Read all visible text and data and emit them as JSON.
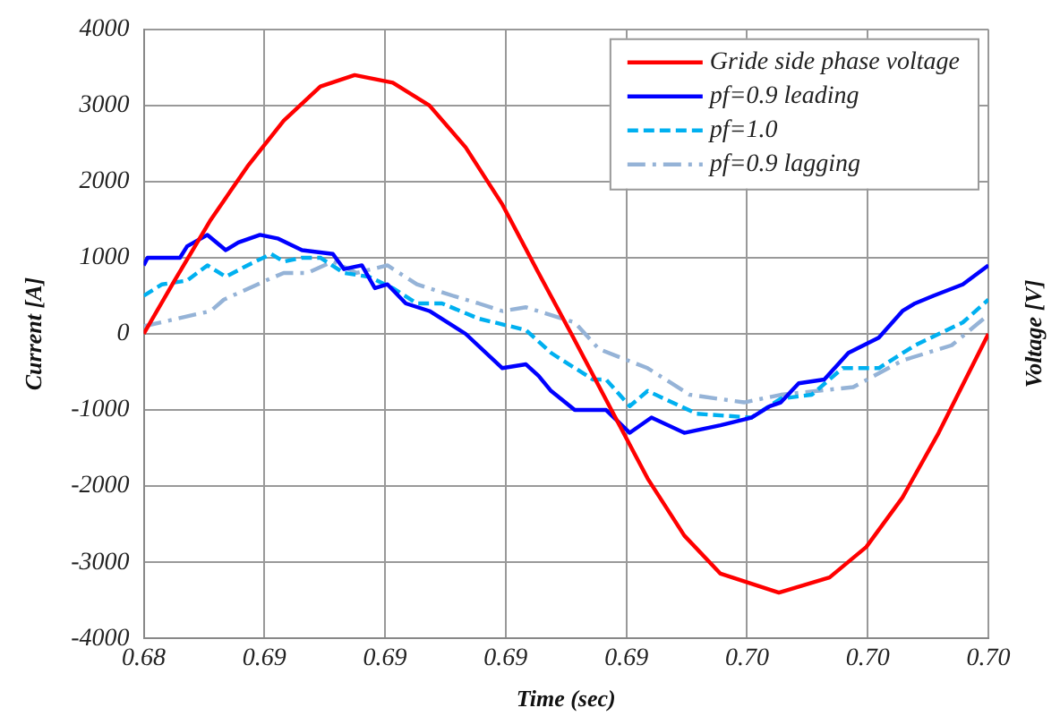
{
  "chart_data": {
    "type": "line",
    "xlabel": "Time (sec)",
    "ylabel": "Current [A]",
    "y2label": "Voltage [V]",
    "xlim": [
      0.6833,
      0.7008
    ],
    "xticks": [
      {
        "value": 0.6833,
        "label": "0.68"
      },
      {
        "value": 0.6858,
        "label": "0.69"
      },
      {
        "value": 0.6883,
        "label": "0.69"
      },
      {
        "value": 0.6908,
        "label": "0.69"
      },
      {
        "value": 0.6933,
        "label": "0.69"
      },
      {
        "value": 0.6958,
        "label": "0.70"
      },
      {
        "value": 0.6983,
        "label": "0.70"
      },
      {
        "value": 0.7008,
        "label": "0.70"
      }
    ],
    "ylim": [
      -4000,
      4000
    ],
    "yticks": [
      -4000,
      -3000,
      -2000,
      -1000,
      0,
      1000,
      2000,
      3000,
      4000
    ],
    "grid": true,
    "legend": "top right",
    "marker": "none",
    "series": [
      {
        "name": "Gride side phase voltage",
        "color": "#ff0000",
        "line_style": "solid",
        "x": [
          0.6833,
          0.68394,
          0.68469,
          0.68545,
          0.6862,
          0.68696,
          0.68767,
          0.68846,
          0.68922,
          0.68997,
          0.69073,
          0.69148,
          0.69216,
          0.69299,
          0.69374,
          0.6945,
          0.69525,
          0.69646,
          0.69751,
          0.69827,
          0.69902,
          0.69977,
          0.7008
        ],
        "values": [
          0,
          700,
          1500,
          2200,
          2800,
          3250,
          3400,
          3300,
          3000,
          2450,
          1700,
          800,
          0,
          -1000,
          -1900,
          -2650,
          -3150,
          -3400,
          -3200,
          -2800,
          -2150,
          -1300,
          0
        ]
      },
      {
        "name": "pf=0.9 leading",
        "color": "#0000ff",
        "line_style": "solid",
        "x": [
          0.6833,
          0.68338,
          0.68405,
          0.6842,
          0.68462,
          0.685,
          0.68526,
          0.68571,
          0.68609,
          0.68658,
          0.68722,
          0.68745,
          0.68782,
          0.68809,
          0.68835,
          0.68873,
          0.68922,
          0.68997,
          0.69073,
          0.69122,
          0.69148,
          0.69174,
          0.69223,
          0.69288,
          0.69337,
          0.69382,
          0.6945,
          0.69525,
          0.69589,
          0.69627,
          0.6965,
          0.69687,
          0.6974,
          0.6979,
          0.69853,
          0.69902,
          0.69928,
          0.69966,
          0.70027,
          0.7008
        ],
        "values": [
          900,
          1000,
          1000,
          1150,
          1300,
          1100,
          1200,
          1300,
          1250,
          1100,
          1050,
          850,
          900,
          600,
          650,
          400,
          300,
          0,
          -450,
          -400,
          -550,
          -750,
          -1000,
          -1000,
          -1300,
          -1100,
          -1300,
          -1200,
          -1100,
          -950,
          -900,
          -650,
          -600,
          -250,
          -50,
          300,
          400,
          500,
          650,
          900
        ]
      },
      {
        "name": "pf=1.0",
        "color": "#00b0f0",
        "line_style": "dashed",
        "x": [
          0.6833,
          0.68368,
          0.6842,
          0.68462,
          0.685,
          0.68545,
          0.68594,
          0.6862,
          0.68658,
          0.68696,
          0.68745,
          0.68797,
          0.68846,
          0.68896,
          0.68948,
          0.69024,
          0.69122,
          0.69174,
          0.69186,
          0.69261,
          0.69288,
          0.69337,
          0.69374,
          0.69476,
          0.69589,
          0.6965,
          0.69714,
          0.69778,
          0.69853,
          0.69928,
          0.70027,
          0.7008
        ],
        "values": [
          500,
          650,
          700,
          900,
          750,
          900,
          1050,
          950,
          1000,
          1000,
          800,
          750,
          600,
          400,
          400,
          200,
          50,
          -250,
          -300,
          -600,
          -600,
          -950,
          -750,
          -1050,
          -1100,
          -850,
          -800,
          -450,
          -450,
          -150,
          150,
          450
        ]
      },
      {
        "name": "pf=0.9 lagging",
        "color": "#95b3d7",
        "line_style": "dashdot",
        "x": [
          0.6833,
          0.68469,
          0.68496,
          0.68583,
          0.6862,
          0.68669,
          0.68722,
          0.68771,
          0.68835,
          0.68896,
          0.68971,
          0.69024,
          0.69073,
          0.69122,
          0.69197,
          0.69223,
          0.69273,
          0.69374,
          0.69461,
          0.69574,
          0.6965,
          0.69725,
          0.698,
          0.69902,
          0.70004,
          0.7008
        ],
        "values": [
          100,
          300,
          450,
          700,
          800,
          800,
          950,
          800,
          900,
          650,
          500,
          400,
          300,
          350,
          200,
          150,
          -200,
          -450,
          -800,
          -900,
          -800,
          -750,
          -700,
          -350,
          -150,
          250
        ]
      }
    ]
  }
}
